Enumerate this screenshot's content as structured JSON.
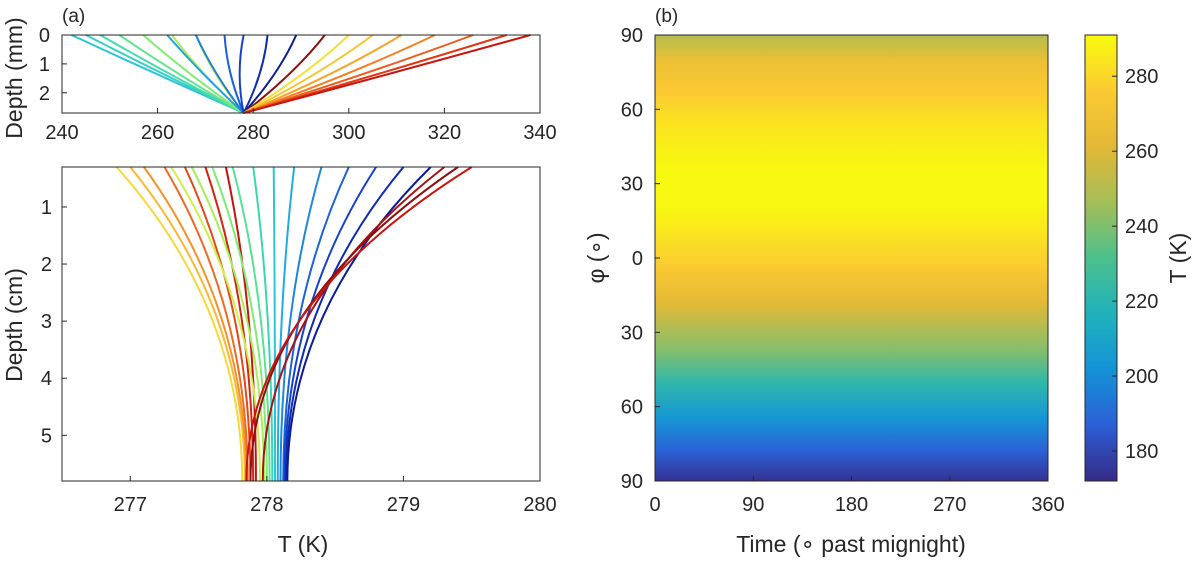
{
  "chart_data": [
    {
      "id": "a-top",
      "type": "line",
      "panel_label": "(a)",
      "xlabel": "",
      "ylabel": "Depth (mm)",
      "xlim": [
        240,
        340
      ],
      "ylim": [
        2.7,
        0
      ],
      "xticks": [
        240,
        260,
        280,
        300,
        320,
        340
      ],
      "yticks": [
        0,
        1,
        2
      ],
      "converge": {
        "T": 278,
        "depth": 2.7
      },
      "series": [
        {
          "name": "profile",
          "surface_T": 242,
          "bow": 2,
          "color": "#2ec4d8"
        },
        {
          "name": "profile",
          "surface_T": 245,
          "bow": 3,
          "color": "#34d1c4"
        },
        {
          "name": "profile",
          "surface_T": 248,
          "bow": 4,
          "color": "#45dbaa"
        },
        {
          "name": "profile",
          "surface_T": 252,
          "bow": 5,
          "color": "#5fe48e"
        },
        {
          "name": "profile",
          "surface_T": 257,
          "bow": 6,
          "color": "#85ea72"
        },
        {
          "name": "profile",
          "surface_T": 263,
          "bow": 7,
          "color": "#a8ee58"
        },
        {
          "name": "profile",
          "surface_T": 268,
          "bow": 8,
          "color": "#cbef46"
        },
        {
          "name": "profile",
          "surface_T": 262,
          "bow": 4,
          "color": "#1fa4e0"
        },
        {
          "name": "profile",
          "surface_T": 268,
          "bow": 6,
          "color": "#1a7fdd"
        },
        {
          "name": "profile",
          "surface_T": 274,
          "bow": 7,
          "color": "#1a5fd6"
        },
        {
          "name": "profile",
          "surface_T": 278,
          "bow": 8,
          "color": "#1640c8"
        },
        {
          "name": "profile",
          "surface_T": 283,
          "bow": 8,
          "color": "#0f2eb0"
        },
        {
          "name": "profile",
          "surface_T": 289,
          "bow": 9,
          "color": "#0a1f90"
        },
        {
          "name": "profile",
          "surface_T": 295,
          "bow": 10,
          "color": "#8b1010"
        },
        {
          "name": "profile",
          "surface_T": 300,
          "bow": 12,
          "color": "#f0e23c"
        },
        {
          "name": "profile",
          "surface_T": 305,
          "bow": 13,
          "color": "#f7c531"
        },
        {
          "name": "profile",
          "surface_T": 311,
          "bow": 15,
          "color": "#f6a42a"
        },
        {
          "name": "profile",
          "surface_T": 318,
          "bow": 14,
          "color": "#f38023"
        },
        {
          "name": "profile",
          "surface_T": 326,
          "bow": 10,
          "color": "#ee5b1c"
        },
        {
          "name": "profile",
          "surface_T": 333,
          "bow": 6,
          "color": "#e03614"
        },
        {
          "name": "profile",
          "surface_T": 338,
          "bow": 3,
          "color": "#c8160f"
        }
      ]
    },
    {
      "id": "a-bottom",
      "type": "line",
      "xlabel": "T (K)",
      "ylabel": "Depth (cm)",
      "xlim": [
        276.5,
        280
      ],
      "ylim": [
        5.8,
        0.3
      ],
      "xticks": [
        277,
        278,
        279,
        280
      ],
      "yticks": [
        1,
        2,
        3,
        4,
        5
      ],
      "series": [
        {
          "name": "profile",
          "surface_T": 276.9,
          "bottom_T": 277.82,
          "color": "#f6d83a"
        },
        {
          "name": "profile",
          "surface_T": 277.0,
          "bottom_T": 277.84,
          "color": "#f9b833"
        },
        {
          "name": "profile",
          "surface_T": 277.1,
          "bottom_T": 277.85,
          "color": "#f4922a"
        },
        {
          "name": "profile",
          "surface_T": 277.25,
          "bottom_T": 277.86,
          "color": "#ee6a22"
        },
        {
          "name": "profile",
          "surface_T": 277.4,
          "bottom_T": 277.88,
          "color": "#e24818"
        },
        {
          "name": "profile",
          "surface_T": 277.55,
          "bottom_T": 277.9,
          "color": "#d0260f"
        },
        {
          "name": "profile",
          "surface_T": 277.7,
          "bottom_T": 277.92,
          "color": "#bf1410"
        },
        {
          "name": "profile",
          "surface_T": 277.3,
          "bottom_T": 277.95,
          "color": "#cfee4c"
        },
        {
          "name": "profile",
          "surface_T": 277.45,
          "bottom_T": 277.98,
          "color": "#a6ef5a"
        },
        {
          "name": "profile",
          "surface_T": 277.6,
          "bottom_T": 278.0,
          "color": "#7fea74"
        },
        {
          "name": "profile",
          "surface_T": 277.75,
          "bottom_T": 278.02,
          "color": "#56e294"
        },
        {
          "name": "profile",
          "surface_T": 277.9,
          "bottom_T": 278.04,
          "color": "#3ad6b4"
        },
        {
          "name": "profile",
          "surface_T": 278.05,
          "bottom_T": 278.06,
          "color": "#2cc6d2"
        },
        {
          "name": "profile",
          "surface_T": 278.2,
          "bottom_T": 278.08,
          "color": "#22aae2"
        },
        {
          "name": "profile",
          "surface_T": 278.4,
          "bottom_T": 278.1,
          "color": "#1d86dd"
        },
        {
          "name": "profile",
          "surface_T": 278.6,
          "bottom_T": 278.12,
          "color": "#1b62d4"
        },
        {
          "name": "profile",
          "surface_T": 278.8,
          "bottom_T": 278.13,
          "color": "#1640c8"
        },
        {
          "name": "profile",
          "surface_T": 279.0,
          "bottom_T": 278.14,
          "color": "#0f2ab2"
        },
        {
          "name": "profile",
          "surface_T": 279.2,
          "bottom_T": 278.15,
          "color": "#0b1b96"
        },
        {
          "name": "profile",
          "surface_T": 279.3,
          "bottom_T": 277.97,
          "color": "#a81212"
        },
        {
          "name": "profile",
          "surface_T": 279.4,
          "bottom_T": 277.88,
          "color": "#8b1010"
        },
        {
          "name": "profile",
          "surface_T": 279.5,
          "bottom_T": 277.85,
          "color": "#c8160f"
        }
      ]
    },
    {
      "id": "b",
      "type": "heatmap",
      "panel_label": "(b)",
      "xlabel": "Time (∘ past mignight)",
      "ylabel": "φ (∘)",
      "xlim": [
        0,
        360
      ],
      "xticks": [
        0,
        90,
        180,
        270,
        360
      ],
      "ytick_labels": [
        "90",
        "60",
        "30",
        "0",
        "30",
        "60",
        "90"
      ],
      "colorbar": {
        "label": "T (K)",
        "range": [
          172,
          291
        ],
        "ticks": [
          180,
          200,
          220,
          240,
          260,
          280
        ],
        "colormap": [
          "#352a87",
          "#2c5fd6",
          "#1493d6",
          "#20b2bc",
          "#4cc08c",
          "#a5be57",
          "#e3b836",
          "#fbca32",
          "#f9fb0e"
        ]
      },
      "latitude_profile_K": [
        {
          "row": 0.0,
          "T": 250
        },
        {
          "row": 0.06,
          "T": 268
        },
        {
          "row": 0.13,
          "T": 276
        },
        {
          "row": 0.2,
          "T": 284
        },
        {
          "row": 0.3,
          "T": 290
        },
        {
          "row": 0.38,
          "T": 290
        },
        {
          "row": 0.44,
          "T": 285
        },
        {
          "row": 0.52,
          "T": 276
        },
        {
          "row": 0.6,
          "T": 262
        },
        {
          "row": 0.7,
          "T": 242
        },
        {
          "row": 0.78,
          "T": 222
        },
        {
          "row": 0.86,
          "T": 203
        },
        {
          "row": 0.93,
          "T": 188
        },
        {
          "row": 1.0,
          "T": 174
        }
      ]
    }
  ]
}
